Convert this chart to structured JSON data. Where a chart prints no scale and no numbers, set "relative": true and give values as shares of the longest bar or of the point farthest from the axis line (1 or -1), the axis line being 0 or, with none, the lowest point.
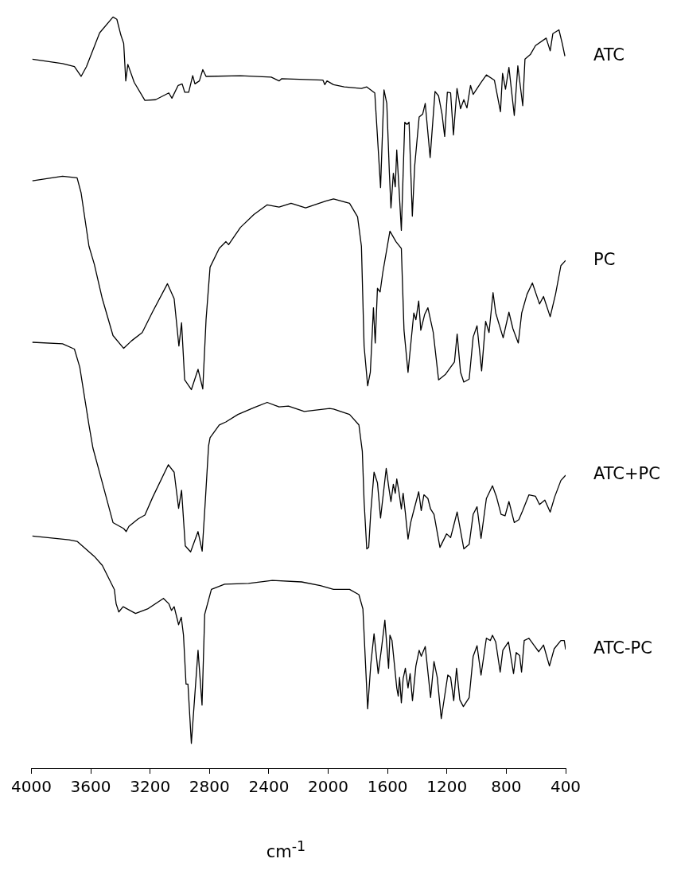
{
  "chart_data": {
    "type": "line",
    "relative": true,
    "xlabel": "cm$^{-1}$",
    "xlim": [
      4000,
      400
    ],
    "xticks": [
      4000,
      3600,
      3200,
      2800,
      2400,
      2000,
      1600,
      1200,
      800,
      400
    ],
    "grid": false,
    "legend": false,
    "marker": "none",
    "line_style": "solid",
    "series": [
      {
        "name": "ATC",
        "color": "#000000",
        "x": [
          3993,
          3790,
          3710,
          3665,
          3629,
          3540,
          3450,
          3424,
          3397,
          3378,
          3364,
          3350,
          3307,
          3235,
          3163,
          3074,
          3053,
          3011,
          2984,
          2967,
          2940,
          2913,
          2898,
          2868,
          2845,
          2823,
          2591,
          2384,
          2331,
          2313,
          2035,
          2023,
          2008,
          1964,
          1892,
          1776,
          1740,
          1686,
          1647,
          1624,
          1605,
          1588,
          1577,
          1561,
          1548,
          1538,
          1523,
          1507,
          1484,
          1469,
          1455,
          1433,
          1417,
          1387,
          1363,
          1346,
          1313,
          1280,
          1256,
          1233,
          1215,
          1197,
          1175,
          1156,
          1132,
          1108,
          1086,
          1065,
          1041,
          1023,
          970,
          934,
          880,
          839,
          825,
          805,
          782,
          746,
          722,
          689,
          674,
          638,
          603,
          531,
          504,
          486,
          445,
          423,
          405
        ],
        "values": [
          0.944,
          0.938,
          0.934,
          0.921,
          0.934,
          0.979,
          1.0,
          0.997,
          0.976,
          0.965,
          0.915,
          0.937,
          0.913,
          0.889,
          0.89,
          0.899,
          0.892,
          0.909,
          0.911,
          0.9,
          0.9,
          0.922,
          0.911,
          0.915,
          0.93,
          0.921,
          0.922,
          0.92,
          0.915,
          0.918,
          0.916,
          0.91,
          0.915,
          0.91,
          0.907,
          0.905,
          0.907,
          0.899,
          0.773,
          0.903,
          0.885,
          0.794,
          0.746,
          0.792,
          0.774,
          0.823,
          0.773,
          0.716,
          0.86,
          0.857,
          0.86,
          0.735,
          0.802,
          0.867,
          0.871,
          0.885,
          0.813,
          0.901,
          0.895,
          0.871,
          0.841,
          0.9,
          0.899,
          0.843,
          0.905,
          0.878,
          0.89,
          0.879,
          0.909,
          0.897,
          0.913,
          0.923,
          0.916,
          0.874,
          0.925,
          0.904,
          0.933,
          0.869,
          0.935,
          0.882,
          0.944,
          0.95,
          0.962,
          0.972,
          0.955,
          0.978,
          0.983,
          0.965,
          0.948
        ]
      },
      {
        "name": "PC",
        "color": "#000000",
        "x": [
          3993,
          3790,
          3692,
          3665,
          3612,
          3576,
          3522,
          3450,
          3378,
          3325,
          3253,
          3182,
          3083,
          3038,
          3006,
          2988,
          2967,
          2922,
          2877,
          2845,
          2823,
          2796,
          2734,
          2689,
          2671,
          2591,
          2501,
          2411,
          2331,
          2250,
          2152,
          2017,
          1964,
          1856,
          1802,
          1776,
          1758,
          1734,
          1716,
          1695,
          1683,
          1668,
          1650,
          1632,
          1584,
          1543,
          1507,
          1489,
          1462,
          1423,
          1409,
          1390,
          1376,
          1350,
          1328,
          1292,
          1256,
          1211,
          1185,
          1149,
          1131,
          1108,
          1086,
          1050,
          1023,
          997,
          966,
          939,
          916,
          889,
          871,
          821,
          782,
          755,
          719,
          696,
          660,
          624,
          576,
          549,
          504,
          468,
          432,
          400
        ],
        "values": [
          0.782,
          0.788,
          0.786,
          0.766,
          0.695,
          0.671,
          0.625,
          0.576,
          0.559,
          0.569,
          0.58,
          0.608,
          0.645,
          0.625,
          0.562,
          0.593,
          0.517,
          0.504,
          0.531,
          0.505,
          0.597,
          0.667,
          0.692,
          0.701,
          0.697,
          0.72,
          0.737,
          0.75,
          0.747,
          0.752,
          0.746,
          0.755,
          0.758,
          0.752,
          0.734,
          0.695,
          0.562,
          0.509,
          0.527,
          0.613,
          0.566,
          0.639,
          0.634,
          0.66,
          0.715,
          0.701,
          0.692,
          0.583,
          0.527,
          0.606,
          0.597,
          0.622,
          0.583,
          0.604,
          0.613,
          0.58,
          0.517,
          0.524,
          0.531,
          0.541,
          0.578,
          0.527,
          0.514,
          0.518,
          0.574,
          0.589,
          0.529,
          0.595,
          0.58,
          0.633,
          0.606,
          0.573,
          0.607,
          0.585,
          0.566,
          0.606,
          0.631,
          0.646,
          0.618,
          0.628,
          0.601,
          0.631,
          0.669,
          0.676
        ]
      },
      {
        "name": "ATC+PC",
        "color": "#000000",
        "x": [
          3993,
          3790,
          3710,
          3674,
          3612,
          3585,
          3522,
          3450,
          3378,
          3361,
          3343,
          3280,
          3235,
          3182,
          3077,
          3038,
          3008,
          2988,
          2963,
          2927,
          2877,
          2849,
          2827,
          2806,
          2796,
          2734,
          2689,
          2608,
          2501,
          2411,
          2331,
          2268,
          2161,
          1991,
          1964,
          1856,
          1793,
          1770,
          1758,
          1740,
          1727,
          1713,
          1691,
          1668,
          1647,
          1609,
          1591,
          1577,
          1561,
          1548,
          1538,
          1523,
          1507,
          1495,
          1480,
          1462,
          1444,
          1426,
          1390,
          1373,
          1355,
          1328,
          1310,
          1287,
          1247,
          1202,
          1175,
          1131,
          1086,
          1050,
          1023,
          997,
          970,
          934,
          893,
          867,
          835,
          808,
          782,
          746,
          715,
          689,
          647,
          603,
          576,
          540,
          504,
          474,
          432,
          400
        ],
        "values": [
          0.567,
          0.565,
          0.558,
          0.534,
          0.457,
          0.426,
          0.38,
          0.327,
          0.319,
          0.315,
          0.322,
          0.332,
          0.337,
          0.361,
          0.404,
          0.394,
          0.346,
          0.37,
          0.296,
          0.288,
          0.315,
          0.289,
          0.359,
          0.429,
          0.44,
          0.457,
          0.461,
          0.471,
          0.48,
          0.487,
          0.481,
          0.482,
          0.475,
          0.479,
          0.478,
          0.471,
          0.457,
          0.422,
          0.355,
          0.292,
          0.294,
          0.341,
          0.394,
          0.38,
          0.333,
          0.399,
          0.373,
          0.355,
          0.378,
          0.366,
          0.385,
          0.368,
          0.345,
          0.366,
          0.34,
          0.305,
          0.327,
          0.341,
          0.368,
          0.343,
          0.364,
          0.359,
          0.345,
          0.338,
          0.294,
          0.312,
          0.307,
          0.341,
          0.292,
          0.298,
          0.338,
          0.348,
          0.306,
          0.359,
          0.376,
          0.362,
          0.338,
          0.336,
          0.355,
          0.327,
          0.331,
          0.343,
          0.364,
          0.362,
          0.351,
          0.357,
          0.341,
          0.361,
          0.383,
          0.39
        ]
      },
      {
        "name": "ATC-PC",
        "color": "#000000",
        "x": [
          3993,
          3746,
          3692,
          3576,
          3522,
          3441,
          3429,
          3411,
          3382,
          3298,
          3217,
          3110,
          3074,
          3056,
          3038,
          3008,
          2990,
          2975,
          2958,
          2945,
          2922,
          2877,
          2850,
          2832,
          2787,
          2698,
          2537,
          2376,
          2179,
          2053,
          1964,
          1856,
          1793,
          1766,
          1734,
          1713,
          1691,
          1663,
          1641,
          1618,
          1593,
          1584,
          1570,
          1538,
          1528,
          1519,
          1507,
          1495,
          1480,
          1462,
          1448,
          1432,
          1409,
          1387,
          1373,
          1346,
          1310,
          1287,
          1265,
          1238,
          1194,
          1175,
          1154,
          1135,
          1113,
          1089,
          1050,
          1023,
          997,
          970,
          934,
          907,
          893,
          871,
          841,
          823,
          785,
          751,
          733,
          710,
          697,
          679,
          647,
          611,
          581,
          549,
          509,
          477,
          432,
          409,
          400
        ],
        "values": [
          0.309,
          0.304,
          0.302,
          0.282,
          0.27,
          0.238,
          0.219,
          0.208,
          0.215,
          0.206,
          0.212,
          0.226,
          0.219,
          0.21,
          0.215,
          0.191,
          0.201,
          0.177,
          0.112,
          0.112,
          0.033,
          0.157,
          0.084,
          0.205,
          0.238,
          0.245,
          0.246,
          0.25,
          0.248,
          0.243,
          0.238,
          0.238,
          0.231,
          0.212,
          0.079,
          0.138,
          0.179,
          0.126,
          0.159,
          0.197,
          0.133,
          0.177,
          0.17,
          0.107,
          0.096,
          0.121,
          0.087,
          0.119,
          0.133,
          0.107,
          0.126,
          0.09,
          0.136,
          0.157,
          0.149,
          0.162,
          0.094,
          0.142,
          0.121,
          0.066,
          0.124,
          0.121,
          0.09,
          0.133,
          0.091,
          0.082,
          0.094,
          0.149,
          0.163,
          0.124,
          0.173,
          0.17,
          0.177,
          0.168,
          0.128,
          0.157,
          0.168,
          0.126,
          0.154,
          0.15,
          0.128,
          0.17,
          0.173,
          0.163,
          0.155,
          0.164,
          0.136,
          0.159,
          0.17,
          0.17,
          0.158
        ]
      }
    ]
  }
}
